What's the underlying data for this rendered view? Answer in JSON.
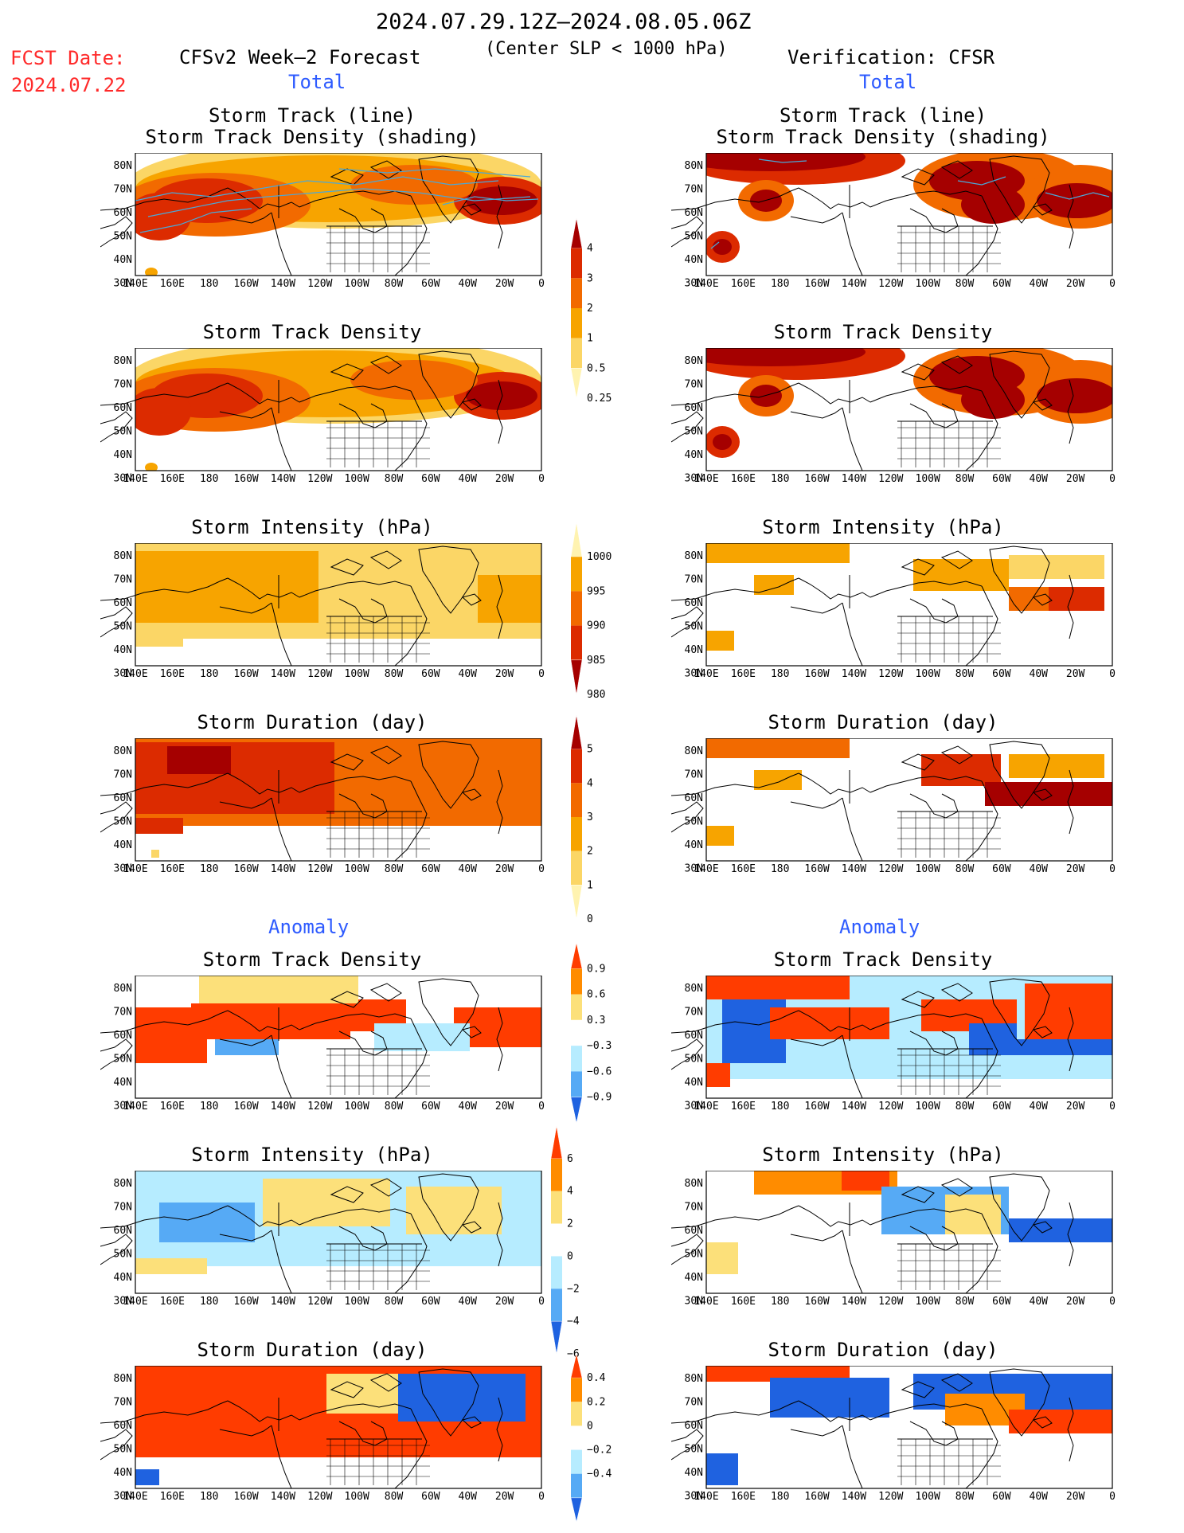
{
  "header": {
    "date_range": "2024.07.29.12Z–2024.08.05.06Z",
    "criterion": "(Center SLP < 1000 hPa)",
    "fcst_label": "FCST Date:",
    "fcst_date": "2024.07.22",
    "left_model": "CFSv2 Week–2 Forecast",
    "right_model": "Verification: CFSR"
  },
  "sections": {
    "total": "Total",
    "anomaly": "Anomaly"
  },
  "panel_titles": {
    "track": "Storm Track (line)\nStorm Track Density (shading)",
    "density": "Storm Track Density",
    "intensity": "Storm Intensity (hPa)",
    "duration": "Storm Duration (day)"
  },
  "axes": {
    "lon_labels": [
      "140E",
      "160E",
      "180",
      "160W",
      "140W",
      "120W",
      "100W",
      "80W",
      "60W",
      "40W",
      "20W",
      "0"
    ],
    "lat_labels": [
      "80N",
      "70N",
      "60N",
      "50N",
      "40N",
      "30N"
    ]
  },
  "colorbars": {
    "density": {
      "labels": [
        "4",
        "3",
        "2",
        "1",
        "0.5",
        "0.25"
      ],
      "colors": [
        "#a50000",
        "#dc2b00",
        "#f26a00",
        "#f7a400",
        "#fbd666",
        "#fff3b0"
      ]
    },
    "intensity": {
      "labels": [
        "1000",
        "995",
        "990",
        "985",
        "980"
      ],
      "colors": [
        "#fff3b0",
        "#f7a400",
        "#f26a00",
        "#dc2b00",
        "#a50000"
      ]
    },
    "duration": {
      "labels": [
        "5",
        "4",
        "3",
        "2",
        "1",
        "0"
      ],
      "colors": [
        "#a50000",
        "#dc2b00",
        "#f26a00",
        "#f7a400",
        "#fbd666",
        "#fff3b0"
      ]
    },
    "anom_density": {
      "labels": [
        "0.9",
        "0.6",
        "0.3",
        "−0.3",
        "−0.6",
        "−0.9"
      ],
      "colors": [
        "#ff3c00",
        "#ff8c00",
        "#fce07a",
        "#ffffff",
        "#b6ecff",
        "#56aaf5",
        "#1f62e0"
      ]
    },
    "anom_intensity": {
      "labels": [
        "6",
        "4",
        "2",
        "0",
        "−2",
        "−4",
        "−6"
      ],
      "colors": [
        "#ff3c00",
        "#ff8c00",
        "#fce07a",
        "#ffffff",
        "#b6ecff",
        "#56aaf5",
        "#1f62e0"
      ]
    },
    "anom_duration": {
      "labels": [
        "0.4",
        "0.2",
        "0",
        "−0.2",
        "−0.4"
      ],
      "colors": [
        "#ff3c00",
        "#ff8c00",
        "#fce07a",
        "#ffffff",
        "#b6ecff",
        "#56aaf5",
        "#1f62e0"
      ]
    }
  },
  "palette": {
    "land_line": "#000000",
    "track_line": "#4aa8d8",
    "dens": [
      "#fff3b0",
      "#fbd666",
      "#f7a400",
      "#f26a00",
      "#dc2b00",
      "#a50000"
    ],
    "anom": [
      "#1f62e0",
      "#56aaf5",
      "#b6ecff",
      "#ffffff",
      "#fce07a",
      "#ff8c00",
      "#ff3c00"
    ]
  }
}
